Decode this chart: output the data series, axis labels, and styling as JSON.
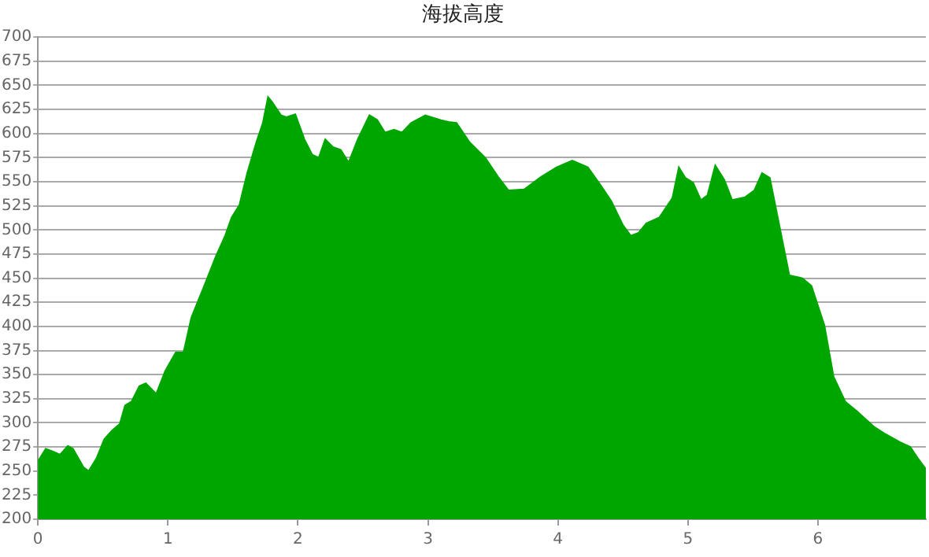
{
  "chart_data": {
    "type": "area",
    "title": "海拔高度",
    "color": "#00a600",
    "grid": "y",
    "xlim": [
      0,
      6.83
    ],
    "xticks": [
      0,
      1,
      2,
      3,
      4,
      5,
      6
    ],
    "ylim": [
      200,
      700
    ],
    "yticks": [
      200,
      225,
      250,
      275,
      300,
      325,
      350,
      375,
      400,
      425,
      450,
      475,
      500,
      525,
      550,
      575,
      600,
      625,
      650,
      675,
      700
    ],
    "x": [
      0,
      0.06,
      0.12,
      0.17,
      0.23,
      0.27,
      0.35,
      0.39,
      0.45,
      0.51,
      0.57,
      0.63,
      0.67,
      0.72,
      0.78,
      0.83,
      0.91,
      0.98,
      1.06,
      1.12,
      1.18,
      1.27,
      1.37,
      1.44,
      1.49,
      1.55,
      1.61,
      1.68,
      1.73,
      1.77,
      1.8,
      1.87,
      1.91,
      1.98,
      2.05,
      2.11,
      2.16,
      2.21,
      2.27,
      2.33,
      2.39,
      2.46,
      2.55,
      2.61,
      2.67,
      2.74,
      2.8,
      2.87,
      2.98,
      3.1,
      3.16,
      3.22,
      3.32,
      3.44,
      3.54,
      3.62,
      3.74,
      3.87,
      3.99,
      4.11,
      4.23,
      4.33,
      4.41,
      4.5,
      4.56,
      4.62,
      4.68,
      4.78,
      4.88,
      4.93,
      4.98,
      5.04,
      5.1,
      5.15,
      5.21,
      5.28,
      5.34,
      5.44,
      5.51,
      5.57,
      5.63,
      5.71,
      5.78,
      5.88,
      5.95,
      6.05,
      6.12,
      6.21,
      6.3,
      6.43,
      6.51,
      6.63,
      6.71,
      6.77,
      6.83
    ],
    "values": [
      260,
      273,
      270,
      267,
      276,
      273,
      254,
      250,
      263,
      283,
      292,
      299,
      318,
      322,
      338,
      341,
      330,
      354,
      373,
      373,
      409,
      439,
      473,
      494,
      513,
      526,
      559,
      591,
      611,
      638,
      633,
      619,
      617,
      620,
      594,
      578,
      575,
      594,
      586,
      583,
      570,
      594,
      619,
      614,
      601,
      604,
      601,
      611,
      619,
      614,
      612,
      611,
      591,
      575,
      555,
      541,
      542,
      555,
      565,
      572,
      565,
      546,
      530,
      505,
      494,
      497,
      507,
      513,
      533,
      565,
      554,
      549,
      531,
      536,
      567,
      552,
      531,
      534,
      541,
      559,
      554,
      500,
      453,
      450,
      442,
      401,
      348,
      322,
      312,
      296,
      289,
      280,
      275,
      263,
      252
    ]
  }
}
